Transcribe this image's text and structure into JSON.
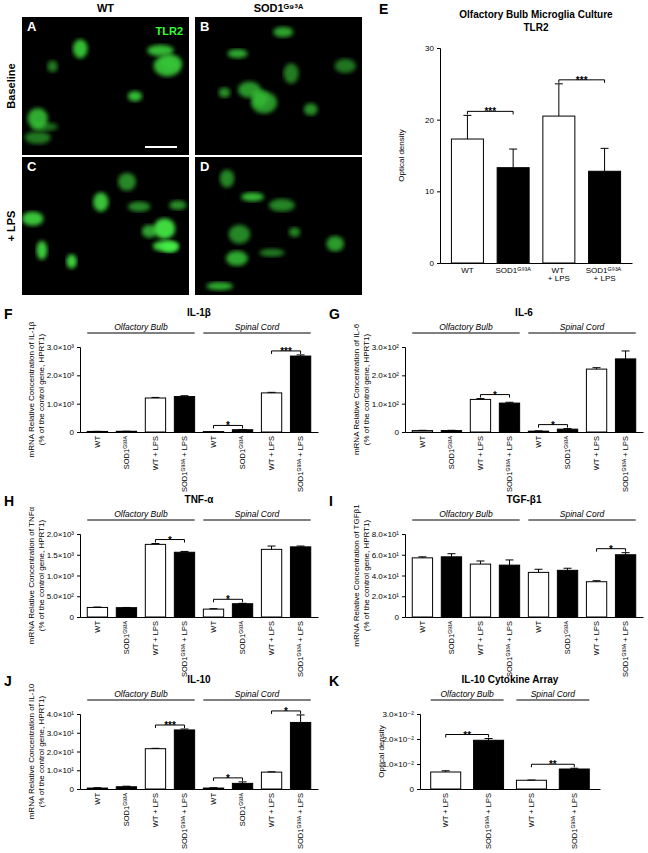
{
  "micrographs": {
    "columns": [
      "WT",
      "SOD1ᴳ⁹³ᴬ"
    ],
    "rows": [
      "Baseline",
      "+ LPS"
    ],
    "panels": [
      "A",
      "B",
      "C",
      "D"
    ],
    "stain": "TLR2"
  },
  "chart_data": [
    {
      "type": "bar",
      "panel": "E",
      "title": "Olfactory Bulb Microglia Culture",
      "subtitle": "TLR2",
      "y_label": [
        "Optical density"
      ],
      "categories": [
        "WT",
        "SOD1ᴳ⁹³ᴬ",
        "WT + LPS",
        "SOD1ᴳ⁹³ᴬ + LPS"
      ],
      "values": [
        17.3,
        13.3,
        20.5,
        12.8
      ],
      "errors": [
        3.3,
        2.6,
        4.5,
        3.2
      ],
      "colors": [
        "#ffffff",
        "#000000",
        "#ffffff",
        "#000000"
      ],
      "ylim": [
        0,
        30
      ],
      "yticks": [
        0,
        10,
        20,
        30
      ],
      "significance": [
        {
          "between": [
            0,
            1
          ],
          "label": "***"
        },
        {
          "between": [
            2,
            3
          ],
          "label": "***"
        }
      ]
    },
    {
      "type": "bar",
      "panel": "F",
      "title": "IL-1β",
      "y_label": [
        "mRNA Relative Concentration of IL-1β",
        "(% of the control gene, HPRT1)"
      ],
      "categories": [
        "WT",
        "SOD1ᴳ⁹³ᴬ",
        "WT + LPS",
        "SOD1ᴳ⁹³ᴬ + LPS",
        "WT",
        "SOD1ᴳ⁹³ᴬ",
        "WT + LPS",
        "SOD1ᴳ⁹³ᴬ + LPS"
      ],
      "groups": [
        {
          "label": "Olfactory Bulb",
          "span": [
            0,
            3
          ]
        },
        {
          "label": "Spinal Cord",
          "span": [
            4,
            7
          ]
        }
      ],
      "values": [
        20,
        25,
        1200,
        1250,
        15,
        80,
        1380,
        2680
      ],
      "errors": [
        3,
        3,
        20,
        30,
        3,
        10,
        20,
        40
      ],
      "colors": [
        "#ffffff",
        "#000000",
        "#ffffff",
        "#000000",
        "#ffffff",
        "#000000",
        "#ffffff",
        "#000000"
      ],
      "ylim": [
        0,
        3000
      ],
      "yticks": [
        0,
        {
          "value": 1000,
          "label": "1.0×10³"
        },
        {
          "value": 2000,
          "label": "2.0×10³"
        },
        {
          "value": 3000,
          "label": "3.0×10³"
        }
      ],
      "significance": [
        {
          "between": [
            4,
            5
          ],
          "label": "*"
        },
        {
          "between": [
            6,
            7
          ],
          "label": "***"
        }
      ]
    },
    {
      "type": "bar",
      "panel": "G",
      "title": "IL-6",
      "y_label": [
        "mRNA Relative Concentration of IL-6",
        "(% of the control gene, HPRT1)"
      ],
      "categories": [
        "WT",
        "SOD1ᴳ⁹³ᴬ",
        "WT + LPS",
        "SOD1ᴳ⁹³ᴬ + LPS",
        "WT",
        "SOD1ᴳ⁹³ᴬ",
        "WT + LPS",
        "SOD1ᴳ⁹³ᴬ + LPS"
      ],
      "groups": [
        {
          "label": "Olfactory Bulb",
          "span": [
            0,
            3
          ]
        },
        {
          "label": "Spinal Cord",
          "span": [
            4,
            7
          ]
        }
      ],
      "values": [
        5,
        5,
        115,
        102,
        3,
        10,
        222,
        258
      ],
      "errors": [
        1,
        1,
        3,
        3,
        1,
        2,
        5,
        28
      ],
      "colors": [
        "#ffffff",
        "#000000",
        "#ffffff",
        "#000000",
        "#ffffff",
        "#000000",
        "#ffffff",
        "#000000"
      ],
      "ylim": [
        0,
        300
      ],
      "yticks": [
        0,
        {
          "value": 100,
          "label": "1.0×10²"
        },
        {
          "value": 200,
          "label": "2.0×10²"
        },
        {
          "value": 300,
          "label": "3.0×10²"
        }
      ],
      "significance": [
        {
          "between": [
            2,
            3
          ],
          "label": "*"
        },
        {
          "between": [
            4,
            5
          ],
          "label": "*"
        }
      ]
    },
    {
      "type": "bar",
      "panel": "H",
      "title": "TNF-α",
      "y_label": [
        "mRNA Relative Concentration of TNFα",
        "(% of the control gene, HPRT1)"
      ],
      "categories": [
        "WT",
        "SOD1ᴳ⁹³ᴬ",
        "WT + LPS",
        "SOD1ᴳ⁹³ᴬ + LPS",
        "WT",
        "SOD1ᴳ⁹³ᴬ",
        "WT + LPS",
        "SOD1ᴳ⁹³ᴬ + LPS"
      ],
      "groups": [
        {
          "label": "Olfactory Bulb",
          "span": [
            0,
            3
          ]
        },
        {
          "label": "Spinal Cord",
          "span": [
            4,
            7
          ]
        }
      ],
      "values": [
        230,
        225,
        1750,
        1560,
        190,
        320,
        1630,
        1690
      ],
      "errors": [
        10,
        5,
        20,
        20,
        10,
        10,
        80,
        20
      ],
      "colors": [
        "#ffffff",
        "#000000",
        "#ffffff",
        "#000000",
        "#ffffff",
        "#000000",
        "#ffffff",
        "#000000"
      ],
      "ylim": [
        0,
        2000
      ],
      "yticks": [
        0,
        {
          "value": 500,
          "label": "5.0×10²"
        },
        {
          "value": 1000,
          "label": "1.0×10³"
        },
        {
          "value": 1500,
          "label": "1.5×10³"
        },
        {
          "value": 2000,
          "label": "2.0×10³"
        }
      ],
      "significance": [
        {
          "between": [
            2,
            3
          ],
          "label": "*"
        },
        {
          "between": [
            4,
            5
          ],
          "label": "*"
        }
      ]
    },
    {
      "type": "bar",
      "panel": "I",
      "title": "TGF-β1",
      "y_label": [
        "mRNA Relative Concentration of TGFβ1",
        "(% of the control gene, HPRT1)"
      ],
      "categories": [
        "WT",
        "SOD1ᴳ⁹³ᴬ",
        "WT + LPS",
        "SOD1ᴳ⁹³ᴬ + LPS",
        "WT",
        "SOD1ᴳ⁹³ᴬ",
        "WT + LPS",
        "SOD1ᴳ⁹³ᴬ + LPS"
      ],
      "groups": [
        {
          "label": "Olfactory Bulb",
          "span": [
            0,
            3
          ]
        },
        {
          "label": "Spinal Cord",
          "span": [
            4,
            7
          ]
        }
      ],
      "values": [
        57,
        58,
        51,
        50,
        43,
        45,
        34,
        60
      ],
      "errors": [
        1,
        3,
        3,
        5,
        3,
        2,
        1,
        2
      ],
      "colors": [
        "#ffffff",
        "#000000",
        "#ffffff",
        "#000000",
        "#ffffff",
        "#000000",
        "#ffffff",
        "#000000"
      ],
      "ylim": [
        0,
        80
      ],
      "yticks": [
        0,
        {
          "value": 20,
          "label": "2.0×10¹"
        },
        {
          "value": 40,
          "label": "4.0×10¹"
        },
        {
          "value": 60,
          "label": "6.0×10¹"
        },
        {
          "value": 80,
          "label": "8.0×10¹"
        }
      ],
      "significance": [
        {
          "between": [
            6,
            7
          ],
          "label": "*"
        }
      ]
    },
    {
      "type": "bar",
      "panel": "J",
      "title": "IL-10",
      "y_label": [
        "mRNA Relative Concentration of IL-10",
        "(% of the control gene, HPRT1)"
      ],
      "categories": [
        "WT",
        "SOD1ᴳ⁹³ᴬ",
        "WT + LPS",
        "SOD1ᴳ⁹³ᴬ + LPS",
        "WT",
        "SOD1ᴳ⁹³ᴬ",
        "WT + LPS",
        "SOD1ᴳ⁹³ᴬ + LPS"
      ],
      "groups": [
        {
          "label": "Olfactory Bulb",
          "span": [
            0,
            3
          ]
        },
        {
          "label": "Spinal Cord",
          "span": [
            4,
            7
          ]
        }
      ],
      "values": [
        0.5,
        1.2,
        21.5,
        31.5,
        0.5,
        3,
        9,
        35.5
      ],
      "errors": [
        0.2,
        0.3,
        0.2,
        0.5,
        0.2,
        0.8,
        0.2,
        4
      ],
      "colors": [
        "#ffffff",
        "#000000",
        "#ffffff",
        "#000000",
        "#ffffff",
        "#000000",
        "#ffffff",
        "#000000"
      ],
      "ylim": [
        0,
        40
      ],
      "yticks": [
        0,
        {
          "value": 10,
          "label": "1.0×10¹"
        },
        {
          "value": 20,
          "label": "2.0×10¹"
        },
        {
          "value": 30,
          "label": "3.0×10¹"
        },
        {
          "value": 40,
          "label": "4.0×10¹"
        }
      ],
      "significance": [
        {
          "between": [
            2,
            3
          ],
          "label": "***"
        },
        {
          "between": [
            4,
            5
          ],
          "label": "*"
        },
        {
          "between": [
            6,
            7
          ],
          "label": "*"
        }
      ]
    },
    {
      "type": "bar",
      "panel": "K",
      "title": "IL-10 Cytokine Array",
      "y_label": [
        "Optical density"
      ],
      "categories": [
        "WT + LPS",
        "SOD1ᴳ⁹³ᴬ + LPS",
        "WT + LPS",
        "SOD1ᴳ⁹³ᴬ + LPS"
      ],
      "groups": [
        {
          "label": "Olfactory Bulb",
          "span": [
            0,
            1
          ]
        },
        {
          "label": "Spinal Cord",
          "span": [
            2,
            3
          ]
        }
      ],
      "values": [
        0.0068,
        0.0195,
        0.0035,
        0.008
      ],
      "errors": [
        0.0005,
        0.0007,
        0.0001,
        0.0003
      ],
      "colors": [
        "#ffffff",
        "#000000",
        "#ffffff",
        "#000000"
      ],
      "ylim": [
        0,
        0.03
      ],
      "yticks": [
        0,
        {
          "value": 0.01,
          "label": "1.0×10⁻²"
        },
        {
          "value": 0.02,
          "label": "2.0×10⁻²"
        },
        {
          "value": 0.03,
          "label": "3.0×10⁻²"
        }
      ],
      "significance": [
        {
          "between": [
            0,
            1
          ],
          "label": "**"
        },
        {
          "between": [
            2,
            3
          ],
          "label": "**"
        }
      ]
    }
  ]
}
